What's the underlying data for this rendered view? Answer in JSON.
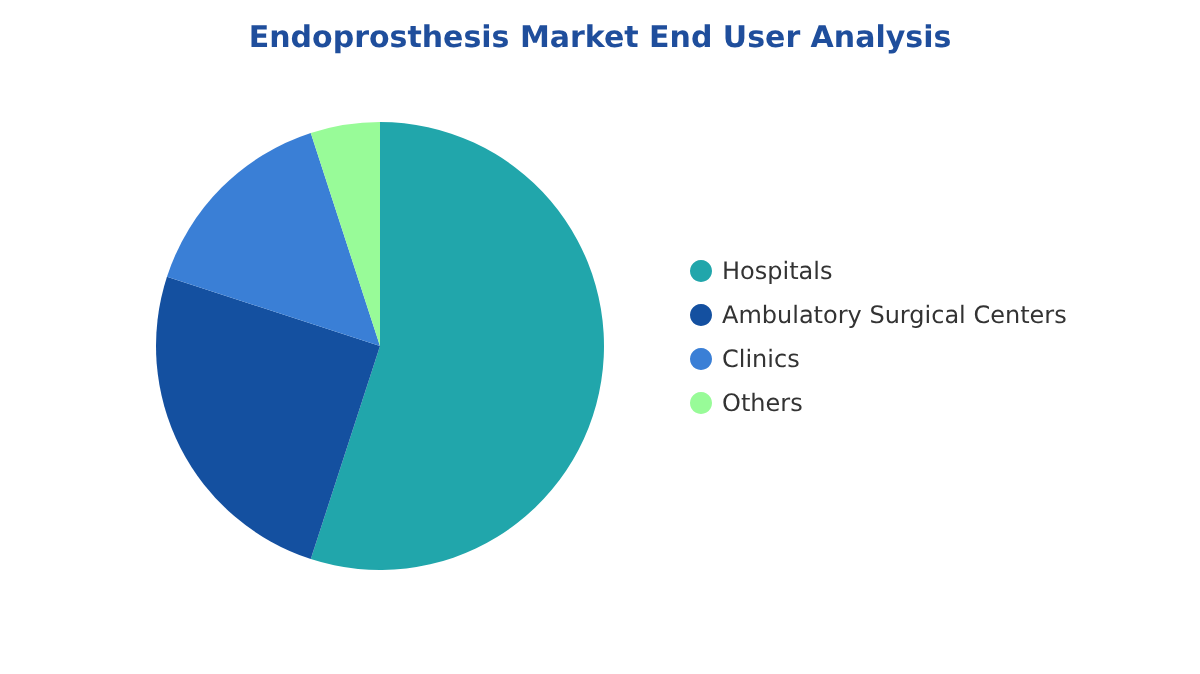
{
  "chart_data": {
    "type": "pie",
    "title": "Endoprosthesis Market End User Analysis",
    "categories": [
      "Hospitals",
      "Ambulatory Surgical Centers",
      "Clinics",
      "Others"
    ],
    "values": [
      55,
      25,
      15,
      5
    ],
    "colors": [
      "#21a6ab",
      "#1450a0",
      "#3a7fd6",
      "#98fb98"
    ],
    "legend": "right"
  }
}
